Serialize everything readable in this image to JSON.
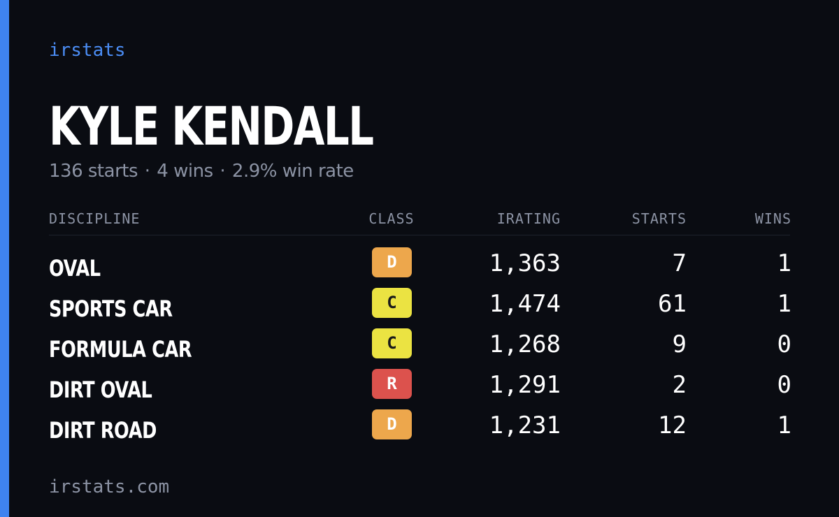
{
  "brand": "irstats",
  "driver": {
    "name": "KYLE KENDALL",
    "starts_text": "136 starts",
    "wins_text": "4 wins",
    "win_rate_text": "2.9% win rate",
    "separator": "·"
  },
  "table": {
    "headers": {
      "discipline": "DISCIPLINE",
      "class": "CLASS",
      "irating": "IRATING",
      "starts": "STARTS",
      "wins": "WINS"
    },
    "rows": [
      {
        "discipline": "OVAL",
        "class": "D",
        "irating": "1,363",
        "starts": "7",
        "wins": "1"
      },
      {
        "discipline": "SPORTS CAR",
        "class": "C",
        "irating": "1,474",
        "starts": "61",
        "wins": "1"
      },
      {
        "discipline": "FORMULA CAR",
        "class": "C",
        "irating": "1,268",
        "starts": "9",
        "wins": "0"
      },
      {
        "discipline": "DIRT OVAL",
        "class": "R",
        "irating": "1,291",
        "starts": "2",
        "wins": "0"
      },
      {
        "discipline": "DIRT ROAD",
        "class": "D",
        "irating": "1,231",
        "starts": "12",
        "wins": "1"
      }
    ]
  },
  "class_colors": {
    "D": {
      "bg": "#eda74c",
      "fg": "#ffffff"
    },
    "C": {
      "bg": "#ebe342",
      "fg": "#1a1a1a"
    },
    "R": {
      "bg": "#dc524d",
      "fg": "#ffffff"
    }
  },
  "footer": "irstats.com"
}
